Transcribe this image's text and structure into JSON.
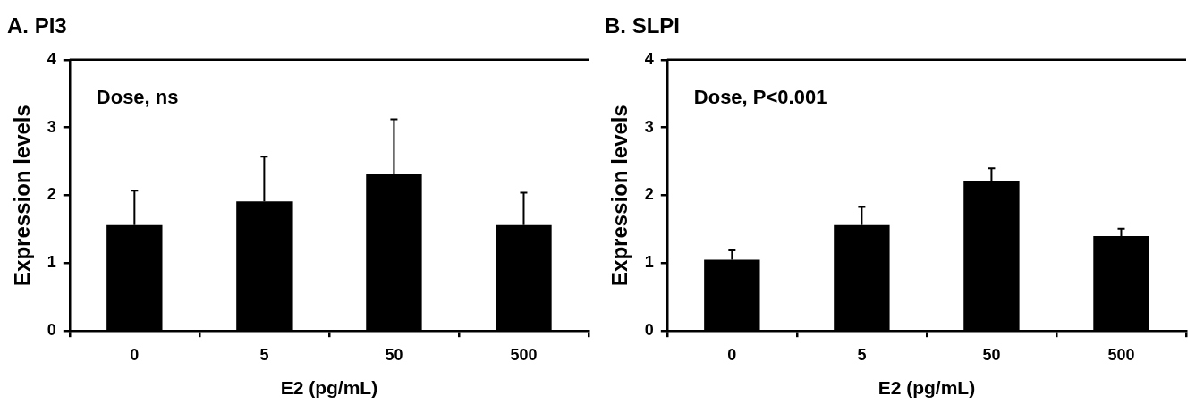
{
  "chart_data": [
    {
      "type": "bar",
      "title": "A. PI3",
      "xlabel": "E2 (pg/mL)",
      "ylabel": "Expression levels",
      "categories": [
        "0",
        "5",
        "50",
        "500"
      ],
      "values": [
        1.56,
        1.91,
        2.31,
        1.56
      ],
      "color": "#000000",
      "errors": [
        [
          1.56,
          2.07
        ],
        [
          1.91,
          2.57
        ],
        [
          2.31,
          3.12
        ],
        [
          1.56,
          2.04
        ]
      ],
      "ylim": [
        0,
        4
      ],
      "yticks": [
        0,
        1,
        2,
        3,
        4
      ],
      "grid": false,
      "legend": false,
      "annotations": [
        "Dose, ns"
      ]
    },
    {
      "type": "bar",
      "title": "B. SLPI",
      "xlabel": "E2 (pg/mL)",
      "ylabel": "Expression levels",
      "categories": [
        "0",
        "5",
        "50",
        "500"
      ],
      "values": [
        1.05,
        1.56,
        2.21,
        1.4
      ],
      "color": "#000000",
      "errors": [
        [
          1.05,
          1.19
        ],
        [
          1.56,
          1.83
        ],
        [
          2.21,
          2.4
        ],
        [
          1.4,
          1.51
        ]
      ],
      "ylim": [
        0,
        4
      ],
      "yticks": [
        0,
        1,
        2,
        3,
        4
      ],
      "grid": false,
      "legend": false,
      "annotations": [
        "Dose, P<0.001"
      ]
    }
  ]
}
